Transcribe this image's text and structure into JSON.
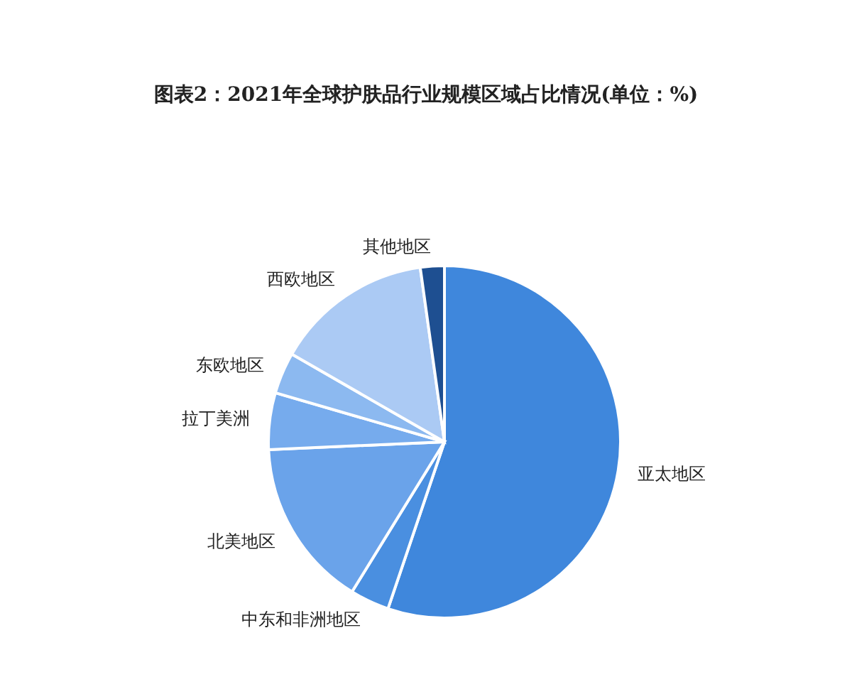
{
  "chart_data": {
    "type": "pie",
    "title": "图表2：2021年全球护肤品行业规模区域占比情况(单位：%)",
    "categories": [
      "亚太地区",
      "中东和非洲地区",
      "北美地区",
      "拉丁美洲",
      "东欧地区",
      "西欧地区",
      "其他地区"
    ],
    "values": [
      55.2,
      3.6,
      15.5,
      5.2,
      3.8,
      14.5,
      2.2
    ],
    "colors": [
      "#3f87dc",
      "#4a8fe0",
      "#6aa3ea",
      "#76abed",
      "#8cb9f0",
      "#abcaf4",
      "#1e4f91"
    ],
    "legend": false
  }
}
